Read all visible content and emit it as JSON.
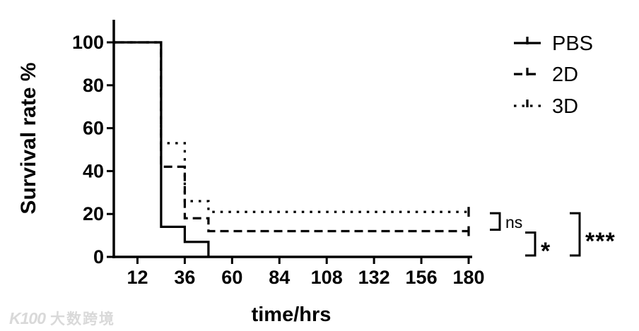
{
  "page": {
    "background": "#ffffff",
    "ink": "#000000"
  },
  "watermark": {
    "logo": "K100",
    "text": "大数跨境",
    "color": "#d9d9d9"
  },
  "chart_data": {
    "type": "line",
    "subtype": "kaplan-meier-survival-steps",
    "title": "",
    "xlabel": "time/hrs",
    "ylabel": "Survival rate %",
    "xlim": [
      0,
      180
    ],
    "ylim": [
      0,
      100
    ],
    "x_ticks": [
      12,
      36,
      60,
      84,
      108,
      132,
      156,
      180
    ],
    "y_ticks": [
      0,
      20,
      40,
      60,
      80,
      100
    ],
    "grid": false,
    "line_color": "#000000",
    "legend_position": "top-right",
    "series": [
      {
        "name": "PBS",
        "style": "solid",
        "end_tick": false,
        "points": [
          [
            0,
            100
          ],
          [
            24,
            100
          ],
          [
            24,
            14
          ],
          [
            36,
            14
          ],
          [
            36,
            7
          ],
          [
            48,
            7
          ],
          [
            48,
            0
          ]
        ]
      },
      {
        "name": "2D",
        "style": "dashed",
        "end_tick": true,
        "points": [
          [
            0,
            100
          ],
          [
            24,
            100
          ],
          [
            24,
            42
          ],
          [
            36,
            42
          ],
          [
            36,
            18
          ],
          [
            48,
            18
          ],
          [
            48,
            12
          ],
          [
            180,
            12
          ]
        ]
      },
      {
        "name": "3D",
        "style": "dotted",
        "end_tick": true,
        "points": [
          [
            0,
            100
          ],
          [
            24,
            100
          ],
          [
            24,
            53
          ],
          [
            36,
            53
          ],
          [
            36,
            26
          ],
          [
            48,
            26
          ],
          [
            48,
            21
          ],
          [
            180,
            21
          ]
        ]
      }
    ],
    "annotations": [
      {
        "label": "ns",
        "between": [
          "3D",
          "2D"
        ]
      },
      {
        "label": "*",
        "between": [
          "2D",
          "PBS"
        ]
      },
      {
        "label": "***",
        "between": [
          "3D",
          "PBS"
        ]
      }
    ]
  }
}
